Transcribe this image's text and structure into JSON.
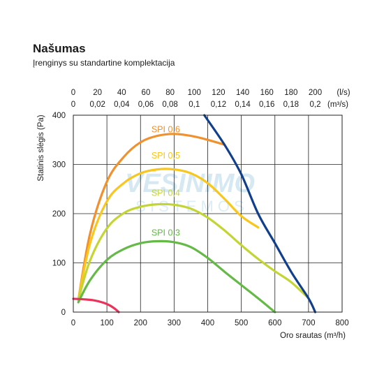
{
  "header": {
    "title": "Našumas",
    "subtitle": "Įrenginys su standartine komplektacija"
  },
  "watermark": {
    "line1": "VĖSINIMO",
    "line2": "S I S T E M O S"
  },
  "chart_data": {
    "type": "line",
    "x": {
      "label": "Oro srautas (m³/h)",
      "range": [
        0,
        800
      ],
      "ticks": [
        0,
        100,
        200,
        300,
        400,
        500,
        600,
        700,
        800
      ]
    },
    "x2_ls": {
      "unit": "(l/s)",
      "ticks": [
        "0",
        "20",
        "40",
        "60",
        "80",
        "100",
        "120",
        "140",
        "160",
        "180",
        "200"
      ],
      "tick_values": [
        0,
        20,
        40,
        60,
        80,
        100,
        120,
        140,
        160,
        180,
        200
      ]
    },
    "x2_m3s": {
      "unit": "(m³/s)",
      "ticks": [
        "0",
        "0,02",
        "0,04",
        "0,06",
        "0,08",
        "0,1",
        "0,12",
        "0,14",
        "0,16",
        "0,18",
        "0,2"
      ],
      "tick_values": [
        0,
        0.02,
        0.04,
        0.06,
        0.08,
        0.1,
        0.12,
        0.14,
        0.16,
        0.18,
        0.2
      ]
    },
    "y": {
      "label": "Statinis slėgis (Pa)",
      "range": [
        0,
        400
      ],
      "ticks": [
        0,
        100,
        200,
        300,
        400
      ]
    },
    "grid": true,
    "series": [
      {
        "name": "SPI 0,6",
        "color": "#f0912e",
        "label_at": [
          275,
          365
        ],
        "points": [
          [
            15,
            25
          ],
          [
            50,
            160
          ],
          [
            100,
            265
          ],
          [
            150,
            315
          ],
          [
            200,
            345
          ],
          [
            250,
            358
          ],
          [
            300,
            362
          ],
          [
            350,
            358
          ],
          [
            400,
            350
          ],
          [
            450,
            340
          ]
        ]
      },
      {
        "name": "SPI 0,5",
        "color": "#f8c61c",
        "label_at": [
          275,
          312
        ],
        "points": [
          [
            15,
            25
          ],
          [
            50,
            140
          ],
          [
            100,
            225
          ],
          [
            150,
            262
          ],
          [
            200,
            282
          ],
          [
            250,
            290
          ],
          [
            300,
            290
          ],
          [
            350,
            282
          ],
          [
            400,
            262
          ],
          [
            450,
            230
          ],
          [
            500,
            195
          ],
          [
            550,
            172
          ]
        ]
      },
      {
        "name": "SPI 0,4",
        "color": "#c3d535",
        "label_at": [
          275,
          236
        ],
        "points": [
          [
            15,
            25
          ],
          [
            50,
            105
          ],
          [
            100,
            170
          ],
          [
            150,
            201
          ],
          [
            200,
            214
          ],
          [
            250,
            219
          ],
          [
            300,
            218
          ],
          [
            350,
            210
          ],
          [
            400,
            192
          ],
          [
            450,
            166
          ],
          [
            500,
            136
          ],
          [
            550,
            108
          ],
          [
            600,
            83
          ],
          [
            650,
            60
          ],
          [
            700,
            28
          ]
        ]
      },
      {
        "name": "SPI 0,3",
        "color": "#64b947",
        "label_at": [
          275,
          155
        ],
        "points": [
          [
            15,
            20
          ],
          [
            50,
            65
          ],
          [
            100,
            106
          ],
          [
            150,
            128
          ],
          [
            200,
            140
          ],
          [
            250,
            144
          ],
          [
            300,
            142
          ],
          [
            350,
            132
          ],
          [
            400,
            110
          ],
          [
            450,
            82
          ],
          [
            500,
            55
          ],
          [
            550,
            28
          ],
          [
            600,
            0
          ]
        ]
      },
      {
        "name": "",
        "color": "#e8345a",
        "points": [
          [
            0,
            27
          ],
          [
            30,
            26
          ],
          [
            60,
            24
          ],
          [
            90,
            19
          ],
          [
            110,
            13
          ],
          [
            125,
            6
          ],
          [
            135,
            0
          ]
        ]
      },
      {
        "name": "",
        "color": "#123f8c",
        "points": [
          [
            390,
            400
          ],
          [
            450,
            340
          ],
          [
            500,
            280
          ],
          [
            550,
            200
          ],
          [
            600,
            140
          ],
          [
            650,
            80
          ],
          [
            700,
            28
          ],
          [
            720,
            0
          ]
        ]
      }
    ]
  }
}
